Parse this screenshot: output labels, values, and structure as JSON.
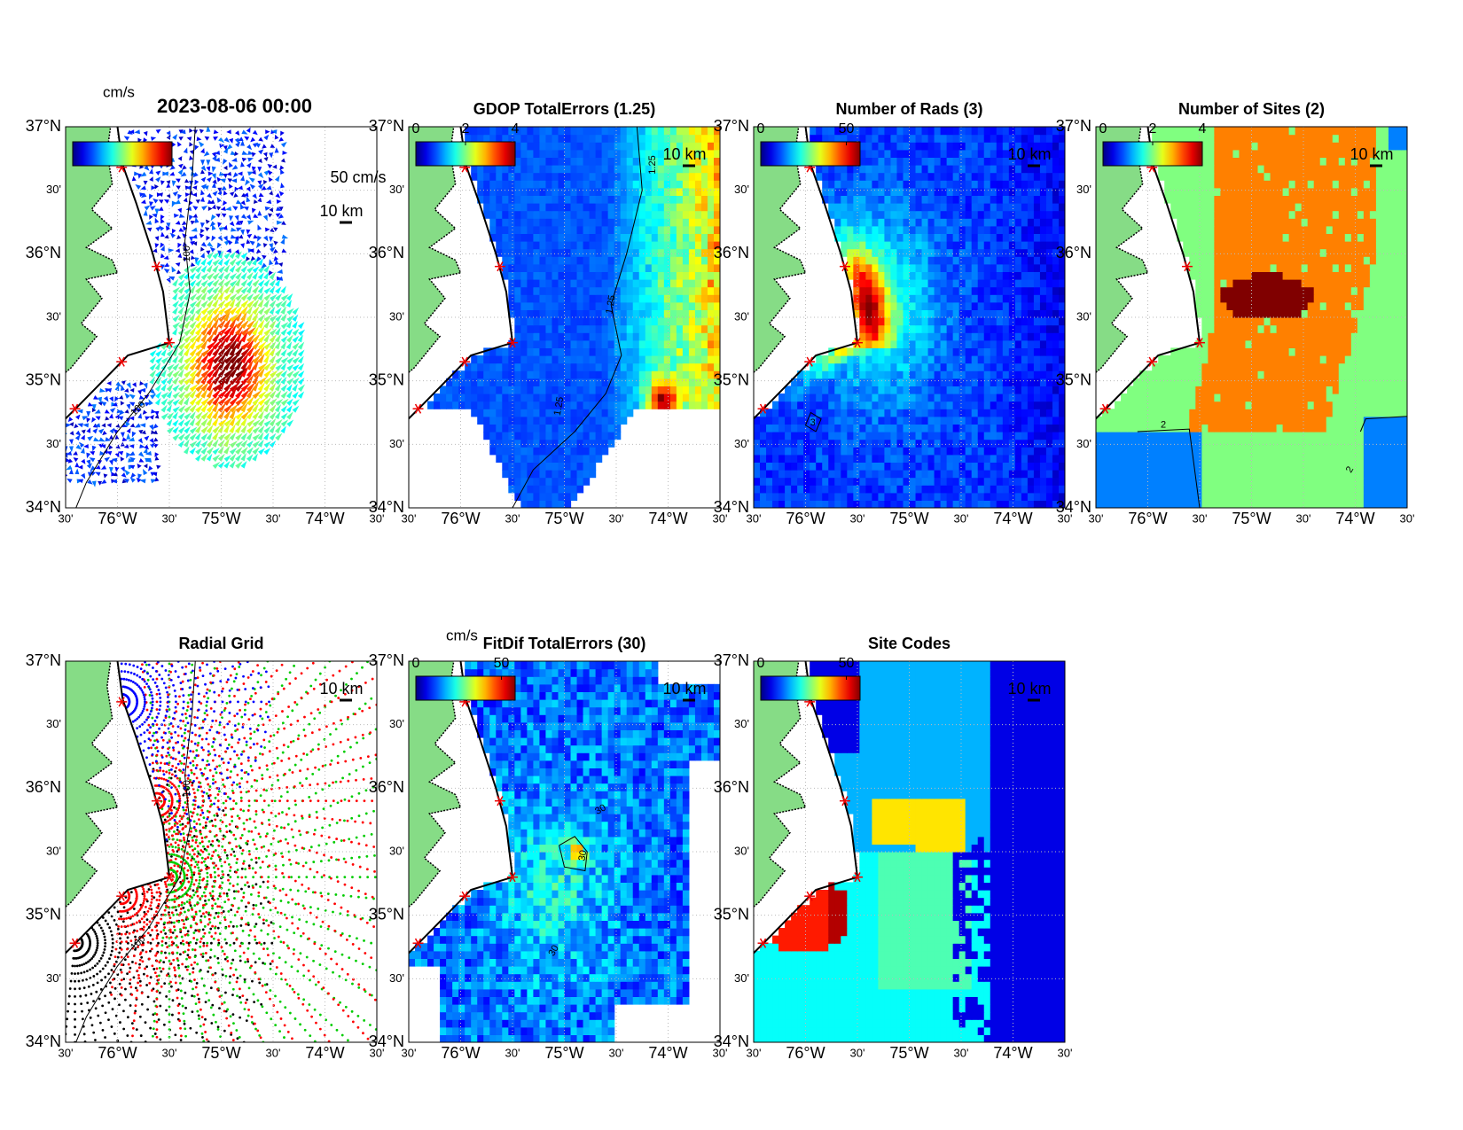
{
  "lat_range": [
    34,
    37
  ],
  "lon_range": [
    -76.5,
    -73.5
  ],
  "lat_ticks": [
    {
      "value": 37,
      "label": "37°N"
    },
    {
      "value": 36.5,
      "label": "30'"
    },
    {
      "value": 36,
      "label": "36°N"
    },
    {
      "value": 35.5,
      "label": "30'"
    },
    {
      "value": 35,
      "label": "35°N"
    },
    {
      "value": 34.5,
      "label": "30'"
    },
    {
      "value": 34,
      "label": "34°N"
    }
  ],
  "lon_ticks": [
    {
      "value": -76.5,
      "label": "30'"
    },
    {
      "value": -76,
      "label": "76°W"
    },
    {
      "value": -75.5,
      "label": "30'"
    },
    {
      "value": -75,
      "label": "75°W"
    },
    {
      "value": -74.5,
      "label": "30'"
    },
    {
      "value": -74,
      "label": "74°W"
    },
    {
      "value": -73.5,
      "label": "30'"
    }
  ],
  "scale_label": "10 km",
  "panels": [
    {
      "type": "vectors",
      "title": "2023-08-06 00:00",
      "colorbar": {
        "unit": "cm/s"
      },
      "vector_scale_label": "50 cm/s",
      "contour_label": "100"
    },
    {
      "type": "gdop",
      "title": "GDOP TotalErrors (1.25)",
      "colorbar": {
        "clim": [
          0,
          4
        ],
        "ticks": [
          0,
          2,
          4
        ]
      },
      "contour_label": "1.25"
    },
    {
      "type": "rads",
      "title": "Number of Rads (3)",
      "colorbar": {
        "clim": [
          0,
          58
        ],
        "ticks": [
          0,
          50
        ]
      },
      "contour_label": "3"
    },
    {
      "type": "sites",
      "title": "Number of Sites (2)",
      "colorbar": {
        "clim": [
          0,
          4
        ],
        "ticks": [
          0,
          2,
          4
        ]
      },
      "contour_label": "2"
    },
    {
      "type": "radial",
      "title": "Radial Grid",
      "contour_label": "100"
    },
    {
      "type": "fitdif",
      "title": "FitDif TotalErrors (30)",
      "colorbar": {
        "unit": "cm/s",
        "clim": [
          0,
          58
        ],
        "ticks": [
          0,
          50
        ]
      },
      "contour_label": "30"
    },
    {
      "type": "codes",
      "title": "Site Codes",
      "colorbar": {
        "clim": [
          0,
          58
        ],
        "ticks": [
          0,
          50
        ]
      }
    }
  ]
}
